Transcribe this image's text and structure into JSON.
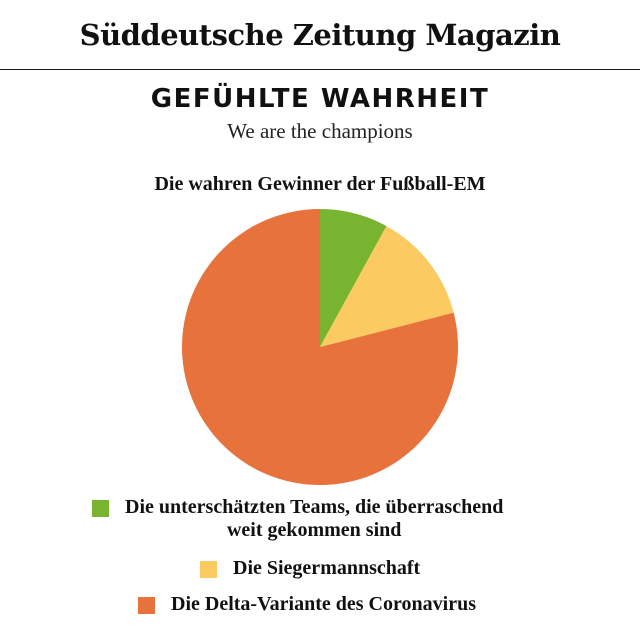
{
  "masthead": {
    "brand": "Süddeutsche Zeitung Magazin"
  },
  "header": {
    "kicker": "GEFÜHLTE WAHRHEIT",
    "subtitle": "We are the champions"
  },
  "chart_data": {
    "type": "pie",
    "title": "Die wahren Gewinner der Fußball-EM",
    "start_angle_deg": 0,
    "direction": "clockwise",
    "slices": [
      {
        "label": "Die unterschätzten Teams, die überraschend weit gekommen sind",
        "label_lines": [
          "Die unterschätzten Teams, die überraschend",
          "weit gekommen sind"
        ],
        "value": 8,
        "color": "#78b42f"
      },
      {
        "label": "Die Siegermannschaft",
        "label_lines": [
          "Die Siegermannschaft"
        ],
        "value": 13,
        "color": "#fbcb61"
      },
      {
        "label": "Die Delta-Variante des Coronavirus",
        "label_lines": [
          "Die Delta-Variante des Coronavirus"
        ],
        "value": 79,
        "color": "#e8723c"
      }
    ],
    "legend_position": "bottom",
    "unit": "%"
  }
}
